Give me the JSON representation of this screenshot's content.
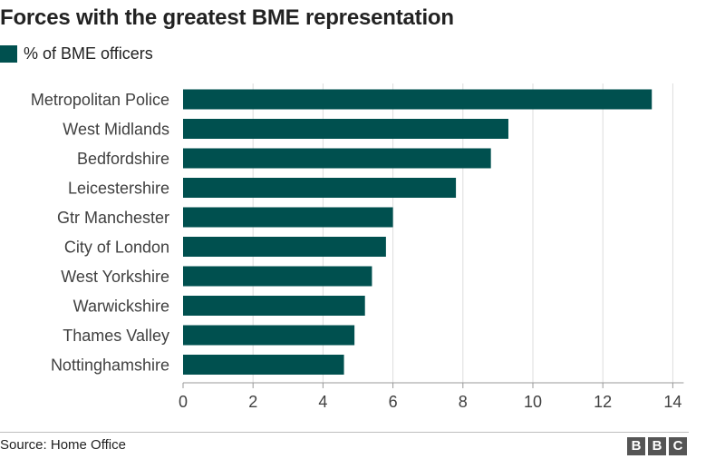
{
  "title": "Forces with the greatest BME representation",
  "legend": {
    "label": "% of BME officers"
  },
  "colors": {
    "bar": "#00504f",
    "grid": "#dddddd",
    "axis": "#999999"
  },
  "chart_data": {
    "type": "bar",
    "orientation": "horizontal",
    "title": "Forces with the greatest BME representation",
    "xlabel": "",
    "ylabel": "",
    "xlim": [
      0,
      14
    ],
    "x_ticks": [
      0,
      2,
      4,
      6,
      8,
      10,
      12,
      14
    ],
    "grid": true,
    "legend_position": "top-left",
    "categories": [
      "Metropolitan Police",
      "West Midlands",
      "Bedfordshire",
      "Leicestershire",
      "Gtr Manchester",
      "City of London",
      "West Yorkshire",
      "Warwickshire",
      "Thames Valley",
      "Nottinghamshire"
    ],
    "series": [
      {
        "name": "% of BME officers",
        "values": [
          13.4,
          9.3,
          8.8,
          7.8,
          6.0,
          5.8,
          5.4,
          5.2,
          4.9,
          4.6
        ]
      }
    ]
  },
  "footer": {
    "source": "Source: Home Office",
    "logo_letters": [
      "B",
      "B",
      "C"
    ]
  }
}
